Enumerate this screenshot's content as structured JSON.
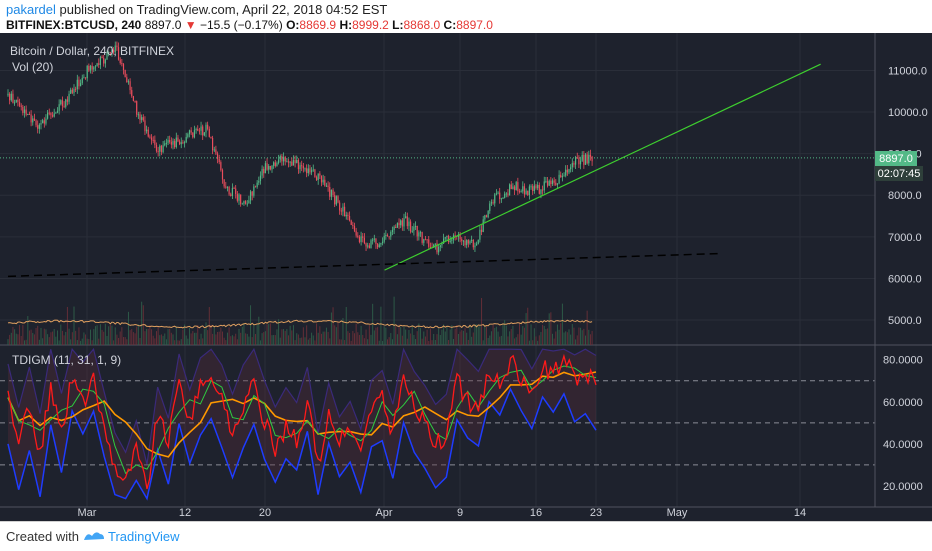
{
  "header": {
    "user": "pakardel",
    "published": " published on TradingView.com, April 22, 2018 04:52 EST",
    "symbol": "BITFINEX:BTCUSD, 240",
    "last": "8897.0",
    "change": "−15.5 (−0.17%)",
    "o_label": "O:",
    "o": "8869.9",
    "h_label": "H:",
    "h": "8999.2",
    "l_label": "L:",
    "l": "8868.0",
    "c_label": "C:",
    "c": "8897.0"
  },
  "chart": {
    "title": "Bitcoin / Dollar, 240, BITFINEX",
    "vol_label": "Vol (20)",
    "indicator_label": "TDIGM (11, 31, 1, 9)",
    "price_badge": "8897.0",
    "countdown_badge": "02:07:45"
  },
  "footer": {
    "created": "Created with",
    "brand": "TradingView"
  },
  "colors": {
    "background": "#1e222d",
    "up": "#53b987",
    "down": "#eb4d5c",
    "trendline": "#3ecf2f",
    "rsi": "#ff1a1a",
    "signal": "#2ecc40",
    "band_mid": "#ff9800",
    "band_upper": "#1e3cff",
    "badge_price": "#53b987"
  },
  "chart_data": [
    {
      "type": "candlestick",
      "title": "Bitcoin / Dollar, 240, BITFINEX",
      "interval": "240",
      "x_ticks": [
        "Mar",
        "12",
        "20",
        "Apr",
        "9",
        "16",
        "23",
        "May",
        "14"
      ],
      "y_ticks": [
        5000.0,
        6000.0,
        7000.0,
        8000.0,
        9000.0,
        10000.0,
        11000.0
      ],
      "y_ticks_text": [
        "5000.0",
        "6000.0",
        "7000.0",
        "8000.0",
        "9000.0",
        "10000.0",
        "11000.0"
      ],
      "ylim": [
        4400,
        11900
      ],
      "last_price": 8897.0,
      "close_path": [
        {
          "date": "Feb 22",
          "close": 10400
        },
        {
          "date": "Feb 25",
          "close": 9700
        },
        {
          "date": "Feb 28",
          "close": 10300
        },
        {
          "date": "Mar 2",
          "close": 11000
        },
        {
          "date": "Mar 5",
          "close": 11500
        },
        {
          "date": "Mar 7",
          "close": 10000
        },
        {
          "date": "Mar 9",
          "close": 9100
        },
        {
          "date": "Mar 11",
          "close": 9300
        },
        {
          "date": "Mar 14",
          "close": 9600
        },
        {
          "date": "Mar 16",
          "close": 8200
        },
        {
          "date": "Mar 18",
          "close": 7800
        },
        {
          "date": "Mar 20",
          "close": 8700
        },
        {
          "date": "Mar 22",
          "close": 8900
        },
        {
          "date": "Mar 25",
          "close": 8500
        },
        {
          "date": "Mar 27",
          "close": 7900
        },
        {
          "date": "Mar 30",
          "close": 6800
        },
        {
          "date": "Apr 1",
          "close": 6900
        },
        {
          "date": "Apr 3",
          "close": 7400
        },
        {
          "date": "Apr 6",
          "close": 6700
        },
        {
          "date": "Apr 8",
          "close": 7000
        },
        {
          "date": "Apr 10",
          "close": 6800
        },
        {
          "date": "Apr 12",
          "close": 7900
        },
        {
          "date": "Apr 14",
          "close": 8200
        },
        {
          "date": "Apr 16",
          "close": 8100
        },
        {
          "date": "Apr 18",
          "close": 8300
        },
        {
          "date": "Apr 20",
          "close": 8800
        },
        {
          "date": "Apr 22",
          "close": 8897
        }
      ],
      "trendline": {
        "from": {
          "date": "Apr 1",
          "price": 6200
        },
        "to": {
          "date": "May 15",
          "price": 11150
        }
      },
      "support_line": {
        "style": "dashed",
        "from": {
          "date": "Feb 22",
          "price": 6050
        },
        "to": {
          "date": "May 5",
          "price": 6600
        }
      },
      "volume_ylim": [
        0,
        1
      ],
      "volume_series_label": "Vol (20)"
    },
    {
      "type": "line",
      "title": "TDIGM (11, 31, 1, 9)",
      "y_ticks": [
        20.0,
        40.0,
        60.0,
        80.0
      ],
      "y_ticks_text": [
        "20.0000",
        "40.0000",
        "60.0000",
        "80.0000"
      ],
      "ylim": [
        10,
        87
      ],
      "reference_lines": [
        30,
        50,
        70
      ],
      "rsi_path": [
        62,
        40,
        58,
        35,
        68,
        44,
        72,
        60,
        70,
        48,
        30,
        22,
        38,
        18,
        55,
        40,
        70,
        52,
        66,
        74,
        60,
        45,
        58,
        68,
        50,
        38,
        48,
        42,
        60,
        30,
        55,
        40,
        48,
        35,
        58,
        62,
        45,
        72,
        58,
        50,
        40,
        44,
        70,
        60,
        55,
        75,
        68,
        80,
        70,
        62,
        78,
        72,
        82,
        70,
        75,
        68
      ]
    }
  ]
}
